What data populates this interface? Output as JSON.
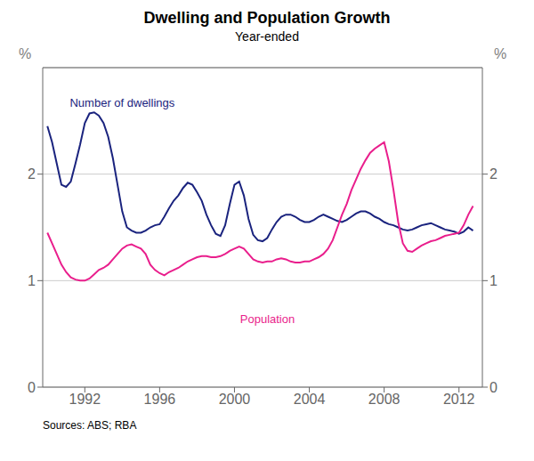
{
  "chart_data": {
    "type": "line",
    "title": "Dwelling and Population Growth",
    "subtitle": "Year-ended",
    "source": "Sources: ABS; RBA",
    "y_label": "%",
    "y2_label": "%",
    "grid": true,
    "xlim": [
      1989.75,
      2013.25
    ],
    "xticks": [
      1992,
      1996,
      2000,
      2004,
      2008,
      2012
    ],
    "ylim": [
      0,
      3.0
    ],
    "yticks": [
      0,
      1,
      2
    ],
    "y2lim": [
      0,
      3.0
    ],
    "y2ticks": [
      0,
      1,
      2
    ],
    "x": [
      1990.0,
      1990.25,
      1990.5,
      1990.75,
      1991.0,
      1991.25,
      1991.5,
      1991.75,
      1992.0,
      1992.25,
      1992.5,
      1992.75,
      1993.0,
      1993.25,
      1993.5,
      1993.75,
      1994.0,
      1994.25,
      1994.5,
      1994.75,
      1995.0,
      1995.25,
      1995.5,
      1995.75,
      1996.0,
      1996.25,
      1996.5,
      1996.75,
      1997.0,
      1997.25,
      1997.5,
      1997.75,
      1998.0,
      1998.25,
      1998.5,
      1998.75,
      1999.0,
      1999.25,
      1999.5,
      1999.75,
      2000.0,
      2000.25,
      2000.5,
      2000.75,
      2001.0,
      2001.25,
      2001.5,
      2001.75,
      2002.0,
      2002.25,
      2002.5,
      2002.75,
      2003.0,
      2003.25,
      2003.5,
      2003.75,
      2004.0,
      2004.25,
      2004.5,
      2004.75,
      2005.0,
      2005.25,
      2005.5,
      2005.75,
      2006.0,
      2006.25,
      2006.5,
      2006.75,
      2007.0,
      2007.25,
      2007.5,
      2007.75,
      2008.0,
      2008.25,
      2008.5,
      2008.75,
      2009.0,
      2009.25,
      2009.5,
      2009.75,
      2010.0,
      2010.25,
      2010.5,
      2010.75,
      2011.0,
      2011.25,
      2011.5,
      2011.75,
      2012.0,
      2012.25,
      2012.5,
      2012.75
    ],
    "series": [
      {
        "name": "Number of dwellings",
        "color": "#1a237e",
        "values": [
          2.45,
          2.3,
          2.1,
          1.9,
          1.88,
          1.93,
          2.1,
          2.28,
          2.48,
          2.57,
          2.58,
          2.55,
          2.48,
          2.35,
          2.15,
          1.9,
          1.65,
          1.5,
          1.47,
          1.45,
          1.45,
          1.47,
          1.5,
          1.52,
          1.53,
          1.6,
          1.68,
          1.75,
          1.8,
          1.87,
          1.92,
          1.9,
          1.83,
          1.75,
          1.62,
          1.52,
          1.44,
          1.42,
          1.52,
          1.72,
          1.9,
          1.93,
          1.8,
          1.58,
          1.43,
          1.38,
          1.37,
          1.4,
          1.48,
          1.55,
          1.6,
          1.62,
          1.62,
          1.6,
          1.57,
          1.55,
          1.55,
          1.57,
          1.6,
          1.62,
          1.6,
          1.58,
          1.56,
          1.55,
          1.57,
          1.6,
          1.63,
          1.65,
          1.65,
          1.63,
          1.6,
          1.58,
          1.55,
          1.53,
          1.52,
          1.5,
          1.48,
          1.47,
          1.48,
          1.5,
          1.52,
          1.53,
          1.54,
          1.52,
          1.5,
          1.48,
          1.47,
          1.46,
          1.44,
          1.46,
          1.5,
          1.47
        ]
      },
      {
        "name": "Population",
        "color": "#e91e8c",
        "values": [
          1.45,
          1.35,
          1.25,
          1.15,
          1.08,
          1.03,
          1.01,
          1.0,
          1.0,
          1.02,
          1.06,
          1.1,
          1.12,
          1.15,
          1.2,
          1.25,
          1.3,
          1.33,
          1.34,
          1.32,
          1.3,
          1.25,
          1.15,
          1.1,
          1.07,
          1.05,
          1.08,
          1.1,
          1.12,
          1.15,
          1.18,
          1.2,
          1.22,
          1.23,
          1.23,
          1.22,
          1.22,
          1.23,
          1.25,
          1.28,
          1.3,
          1.32,
          1.3,
          1.25,
          1.2,
          1.18,
          1.17,
          1.18,
          1.18,
          1.2,
          1.21,
          1.2,
          1.18,
          1.17,
          1.17,
          1.18,
          1.18,
          1.2,
          1.22,
          1.25,
          1.3,
          1.38,
          1.5,
          1.62,
          1.72,
          1.85,
          1.95,
          2.05,
          2.13,
          2.2,
          2.24,
          2.27,
          2.3,
          2.12,
          1.85,
          1.55,
          1.35,
          1.28,
          1.27,
          1.3,
          1.33,
          1.35,
          1.37,
          1.38,
          1.4,
          1.42,
          1.43,
          1.44,
          1.45,
          1.52,
          1.62,
          1.7
        ]
      }
    ],
    "annotations": [
      {
        "text": "Number of dwellings",
        "x": 1991.2,
        "y": 2.73,
        "color": "#1a237e"
      },
      {
        "text": "Population",
        "x": 2000.3,
        "y": 0.7,
        "color": "#e91e8c"
      }
    ]
  }
}
